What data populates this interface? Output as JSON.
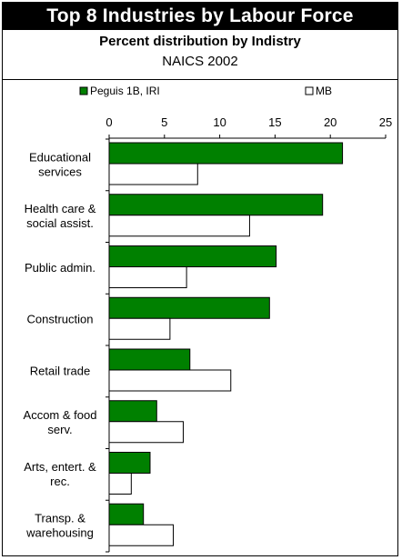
{
  "chart_data": {
    "type": "bar",
    "orientation": "horizontal",
    "title": "Top 8 Industries by Labour Force",
    "subtitle": "Percent distribution by Indistry",
    "subtitle2": "NAICS 2002",
    "categories": [
      [
        "Educational",
        "services"
      ],
      [
        "Health care &",
        "social assist."
      ],
      [
        "Public admin."
      ],
      [
        "Construction"
      ],
      [
        "Retail trade"
      ],
      [
        "Accom & food",
        "serv."
      ],
      [
        "Arts, entert. &",
        "rec."
      ],
      [
        "Transp. &",
        "warehousing"
      ]
    ],
    "series": [
      {
        "name": "Peguis 1B, IRI",
        "color": "#008000",
        "values": [
          21.1,
          19.3,
          15.1,
          14.5,
          7.3,
          4.3,
          3.7,
          3.1
        ]
      },
      {
        "name": "MB",
        "color": "#ffffff",
        "values": [
          8.0,
          12.7,
          7.0,
          5.5,
          11.0,
          6.7,
          2.0,
          5.8
        ]
      }
    ],
    "xlim": [
      0,
      25
    ],
    "xticks": [
      0,
      5,
      10,
      15,
      20,
      25
    ],
    "axis_position": "top",
    "legend_position": "top",
    "grid": false
  }
}
